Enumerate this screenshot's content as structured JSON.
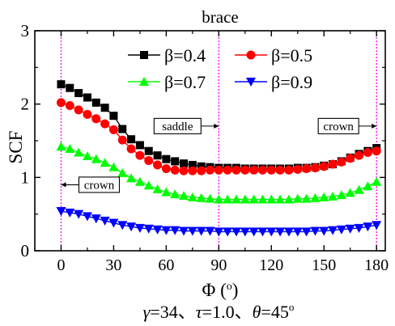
{
  "chart_data": {
    "type": "line",
    "title": "brace",
    "xlabel": "Φ (°)",
    "ylabel": "SCF",
    "caption": "γ=34、τ=1.0、θ=45°",
    "xlim": [
      -15,
      185
    ],
    "ylim": [
      0,
      3
    ],
    "xticks": [
      0,
      30,
      60,
      90,
      120,
      150,
      180
    ],
    "yticks": [
      0,
      1,
      2,
      3
    ],
    "grid": false,
    "legend_position": "top",
    "x": [
      0,
      5,
      10,
      15,
      20,
      25,
      30,
      35,
      40,
      45,
      50,
      55,
      60,
      65,
      70,
      75,
      80,
      85,
      90,
      95,
      100,
      105,
      110,
      115,
      120,
      125,
      130,
      135,
      140,
      145,
      150,
      155,
      160,
      165,
      170,
      175,
      180
    ],
    "series": [
      {
        "name": "β=0.4",
        "color": "#000000",
        "marker": "square",
        "values": [
          2.27,
          2.22,
          2.15,
          2.09,
          2.02,
          1.95,
          1.84,
          1.66,
          1.52,
          1.44,
          1.36,
          1.3,
          1.25,
          1.22,
          1.19,
          1.17,
          1.15,
          1.14,
          1.13,
          1.13,
          1.13,
          1.12,
          1.12,
          1.12,
          1.12,
          1.12,
          1.12,
          1.13,
          1.13,
          1.14,
          1.16,
          1.18,
          1.22,
          1.27,
          1.32,
          1.36,
          1.4
        ]
      },
      {
        "name": "β=0.5",
        "color": "#ff0000",
        "marker": "circle",
        "values": [
          2.02,
          1.98,
          1.92,
          1.86,
          1.8,
          1.73,
          1.65,
          1.51,
          1.39,
          1.3,
          1.23,
          1.17,
          1.12,
          1.1,
          1.09,
          1.09,
          1.09,
          1.1,
          1.1,
          1.1,
          1.1,
          1.1,
          1.1,
          1.1,
          1.1,
          1.1,
          1.1,
          1.11,
          1.12,
          1.13,
          1.15,
          1.18,
          1.21,
          1.26,
          1.3,
          1.34,
          1.36
        ]
      },
      {
        "name": "β=0.7",
        "color": "#00ff00",
        "marker": "triangle-up",
        "values": [
          1.42,
          1.39,
          1.34,
          1.29,
          1.25,
          1.2,
          1.14,
          1.06,
          0.99,
          0.94,
          0.89,
          0.84,
          0.8,
          0.77,
          0.75,
          0.73,
          0.72,
          0.71,
          0.7,
          0.7,
          0.7,
          0.7,
          0.7,
          0.7,
          0.7,
          0.7,
          0.7,
          0.71,
          0.71,
          0.72,
          0.73,
          0.74,
          0.76,
          0.79,
          0.83,
          0.88,
          0.94
        ]
      },
      {
        "name": "β=0.9",
        "color": "#0000ff",
        "marker": "triangle-down",
        "values": [
          0.54,
          0.52,
          0.5,
          0.47,
          0.44,
          0.41,
          0.38,
          0.35,
          0.33,
          0.31,
          0.3,
          0.29,
          0.28,
          0.28,
          0.27,
          0.27,
          0.27,
          0.27,
          0.26,
          0.26,
          0.26,
          0.26,
          0.26,
          0.26,
          0.26,
          0.26,
          0.26,
          0.26,
          0.26,
          0.27,
          0.27,
          0.28,
          0.29,
          0.3,
          0.31,
          0.33,
          0.35
        ]
      }
    ],
    "reference_lines": [
      {
        "x": 0,
        "color": "#ff00ff",
        "style": "dotted"
      },
      {
        "x": 90,
        "color": "#ff00ff",
        "style": "dotted"
      },
      {
        "x": 180,
        "color": "#ff00ff",
        "style": "dotted"
      }
    ],
    "annotations": [
      {
        "text": "saddle",
        "arrow": "right",
        "target_x": 90,
        "y": 1.7
      },
      {
        "text": "crown",
        "arrow": "right",
        "target_x": 180,
        "y": 1.7
      },
      {
        "text": "crown",
        "arrow": "left",
        "target_x": 0,
        "y": 0.9
      }
    ]
  }
}
